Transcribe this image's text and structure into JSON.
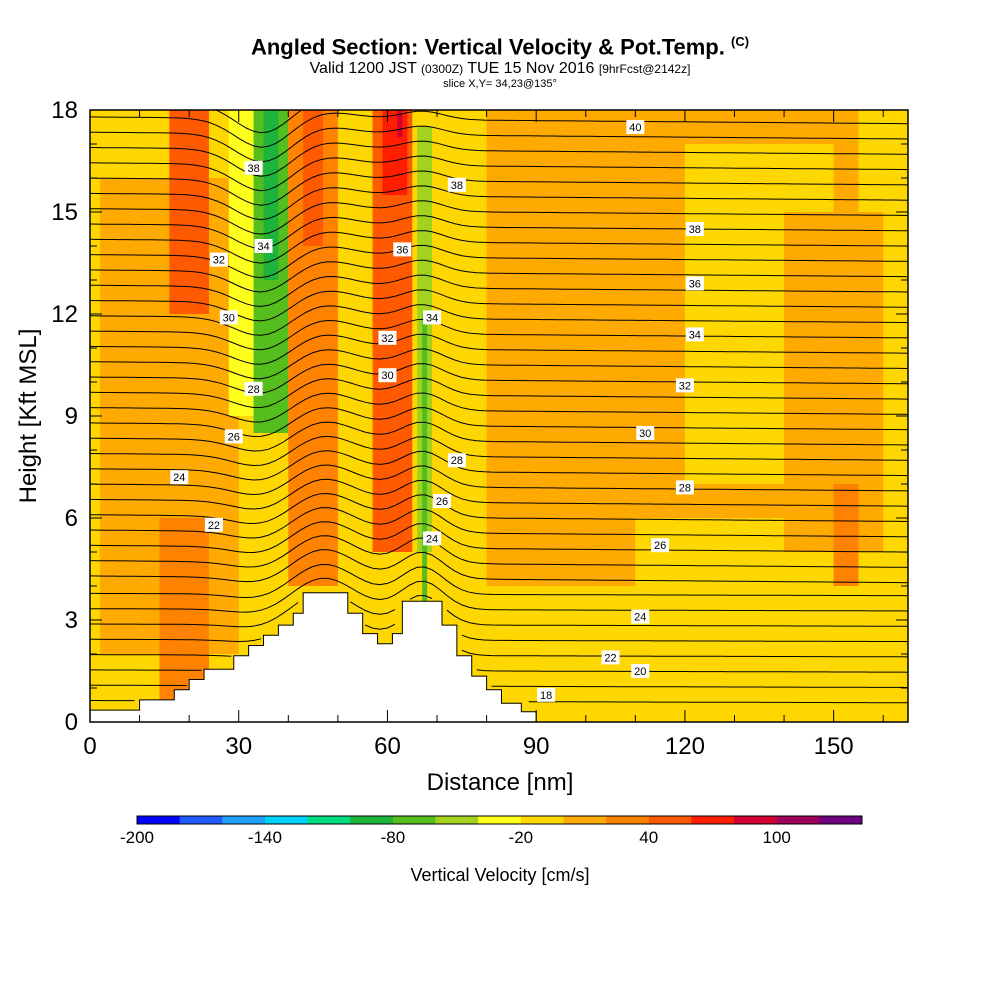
{
  "header": {
    "title": "Angled Section: Vertical Velocity & Pot.Temp.",
    "title_unit": "(C)",
    "valid_prefix": "Valid 1200 JST",
    "valid_utc": "(0300Z)",
    "valid_date": "TUE 15 Nov 2016",
    "forecast": "[9hrFcst@2142z]",
    "slice": "slice X,Y= 34,23@135°"
  },
  "chart_data": {
    "type": "heatmap",
    "xlabel": "Distance [nm]",
    "ylabel": "Height [Kft MSL]",
    "xlim": [
      0,
      165
    ],
    "ylim": [
      0,
      18
    ],
    "x_ticks": [
      0,
      30,
      60,
      90,
      120,
      150
    ],
    "y_ticks": [
      0,
      3,
      6,
      9,
      12,
      15,
      18
    ],
    "x_tick_labels": [
      "0",
      "30",
      "60",
      "90",
      "120",
      "150"
    ],
    "y_tick_labels": [
      "0",
      "3",
      "6",
      "9",
      "12",
      "15",
      "18"
    ],
    "terrain_profile": [
      [
        0,
        0.35
      ],
      [
        10,
        0.35
      ],
      [
        10,
        0.65
      ],
      [
        17,
        0.65
      ],
      [
        17,
        0.95
      ],
      [
        20,
        0.95
      ],
      [
        20,
        1.25
      ],
      [
        23,
        1.25
      ],
      [
        23,
        1.55
      ],
      [
        26,
        1.55
      ],
      [
        26,
        1.55
      ],
      [
        29,
        1.55
      ],
      [
        29,
        1.95
      ],
      [
        32,
        1.95
      ],
      [
        32,
        2.25
      ],
      [
        35,
        2.25
      ],
      [
        35,
        2.55
      ],
      [
        38,
        2.55
      ],
      [
        38,
        2.85
      ],
      [
        41,
        2.85
      ],
      [
        41,
        3.2
      ],
      [
        43,
        3.2
      ],
      [
        43,
        3.8
      ],
      [
        52,
        3.8
      ],
      [
        52,
        3.2
      ],
      [
        55,
        3.2
      ],
      [
        55,
        2.6
      ],
      [
        58,
        2.6
      ],
      [
        58,
        2.3
      ],
      [
        61,
        2.3
      ],
      [
        61,
        2.6
      ],
      [
        63,
        2.6
      ],
      [
        63,
        3.55
      ],
      [
        71,
        3.55
      ],
      [
        71,
        2.85
      ],
      [
        74,
        2.85
      ],
      [
        74,
        1.95
      ],
      [
        77,
        1.95
      ],
      [
        77,
        1.35
      ],
      [
        80,
        1.35
      ],
      [
        80,
        0.95
      ],
      [
        83,
        0.95
      ],
      [
        83,
        0.55
      ],
      [
        87,
        0.55
      ],
      [
        87,
        0.3
      ],
      [
        90,
        0.3
      ],
      [
        90,
        0
      ],
      [
        0,
        0
      ]
    ],
    "vertical_velocity": {
      "unit": "cm/s",
      "background": "#ffd700",
      "cells": [
        {
          "x": [
            0,
            165
          ],
          "y": [
            0,
            18
          ],
          "level": -10
        },
        {
          "x": [
            2,
            30
          ],
          "y": [
            2,
            16
          ],
          "level": 10
        },
        {
          "x": [
            14,
            24
          ],
          "y": [
            0.5,
            6
          ],
          "level": 30
        },
        {
          "x": [
            16,
            24
          ],
          "y": [
            12,
            18
          ],
          "level": 50
        },
        {
          "x": [
            28,
            34
          ],
          "y": [
            9,
            18
          ],
          "level": -30
        },
        {
          "x": [
            33,
            40
          ],
          "y": [
            8.5,
            18
          ],
          "level": -70
        },
        {
          "x": [
            35,
            38
          ],
          "y": [
            13,
            18
          ],
          "level": -90
        },
        {
          "x": [
            40,
            50
          ],
          "y": [
            4,
            18
          ],
          "level": 30
        },
        {
          "x": [
            43,
            47
          ],
          "y": [
            14,
            18
          ],
          "level": 50
        },
        {
          "x": [
            51,
            58
          ],
          "y": [
            4,
            17
          ],
          "level": -20
        },
        {
          "x": [
            57,
            65
          ],
          "y": [
            5,
            18
          ],
          "level": 40
        },
        {
          "x": [
            59,
            64
          ],
          "y": [
            15.5,
            18
          ],
          "level": 60
        },
        {
          "x": [
            62,
            63
          ],
          "y": [
            17.2,
            18
          ],
          "level": 80
        },
        {
          "x": [
            66,
            69
          ],
          "y": [
            5,
            17.5
          ],
          "level": -50
        },
        {
          "x": [
            67,
            68
          ],
          "y": [
            3.2,
            12
          ],
          "level": -70
        },
        {
          "x": [
            70,
            80
          ],
          "y": [
            6,
            17
          ],
          "level": -20
        },
        {
          "x": [
            80,
            110
          ],
          "y": [
            4,
            18
          ],
          "level": 10
        },
        {
          "x": [
            100,
            155
          ],
          "y": [
            6,
            18
          ],
          "level": 10
        },
        {
          "x": [
            120,
            150
          ],
          "y": [
            7,
            17
          ],
          "level": -10
        },
        {
          "x": [
            140,
            160
          ],
          "y": [
            5,
            15
          ],
          "level": 10
        },
        {
          "x": [
            150,
            155
          ],
          "y": [
            4,
            7
          ],
          "level": 30
        }
      ]
    },
    "potential_temperature": {
      "unit": "C",
      "contour_interval": 1,
      "labeled_contours": [
        {
          "value": 40,
          "at": [
            110,
            17.5
          ]
        },
        {
          "value": 38,
          "at": [
            33,
            16.3
          ]
        },
        {
          "value": 38,
          "at": [
            74,
            15.8
          ]
        },
        {
          "value": 38,
          "at": [
            122,
            14.5
          ]
        },
        {
          "value": 36,
          "at": [
            63,
            13.9
          ]
        },
        {
          "value": 36,
          "at": [
            122,
            12.9
          ]
        },
        {
          "value": 34,
          "at": [
            35,
            14
          ]
        },
        {
          "value": 34,
          "at": [
            69,
            11.9
          ]
        },
        {
          "value": 34,
          "at": [
            122,
            11.4
          ]
        },
        {
          "value": 32,
          "at": [
            26,
            13.6
          ]
        },
        {
          "value": 32,
          "at": [
            60,
            11.3
          ]
        },
        {
          "value": 32,
          "at": [
            120,
            9.9
          ]
        },
        {
          "value": 30,
          "at": [
            28,
            11.9
          ]
        },
        {
          "value": 30,
          "at": [
            60,
            10.2
          ]
        },
        {
          "value": 30,
          "at": [
            112,
            8.5
          ]
        },
        {
          "value": 28,
          "at": [
            33,
            9.8
          ]
        },
        {
          "value": 28,
          "at": [
            74,
            7.7
          ]
        },
        {
          "value": 28,
          "at": [
            120,
            6.9
          ]
        },
        {
          "value": 26,
          "at": [
            29,
            8.4
          ]
        },
        {
          "value": 26,
          "at": [
            71,
            6.5
          ]
        },
        {
          "value": 26,
          "at": [
            115,
            5.2
          ]
        },
        {
          "value": 24,
          "at": [
            18,
            7.2
          ]
        },
        {
          "value": 24,
          "at": [
            69,
            5.4
          ]
        },
        {
          "value": 24,
          "at": [
            111,
            3.1
          ]
        },
        {
          "value": 22,
          "at": [
            25,
            5.8
          ]
        },
        {
          "value": 22,
          "at": [
            105,
            1.9
          ]
        },
        {
          "value": 20,
          "at": [
            111,
            1.5
          ]
        },
        {
          "value": 18,
          "at": [
            92,
            0.8
          ]
        }
      ]
    }
  },
  "colorbar": {
    "label": "Vertical Velocity [cm/s]",
    "tick_labels": [
      "-200",
      "-140",
      "-80",
      "-20",
      "40",
      "100"
    ],
    "colors": [
      "#0000ff",
      "#1e5aff",
      "#1ea0ff",
      "#00d2ff",
      "#00dc82",
      "#1eb43c",
      "#55be1e",
      "#a0d21e",
      "#ffff1e",
      "#ffd700",
      "#ffaa00",
      "#ff8200",
      "#ff5a00",
      "#ff1e00",
      "#d20032",
      "#a0005a",
      "#6e0082"
    ]
  }
}
